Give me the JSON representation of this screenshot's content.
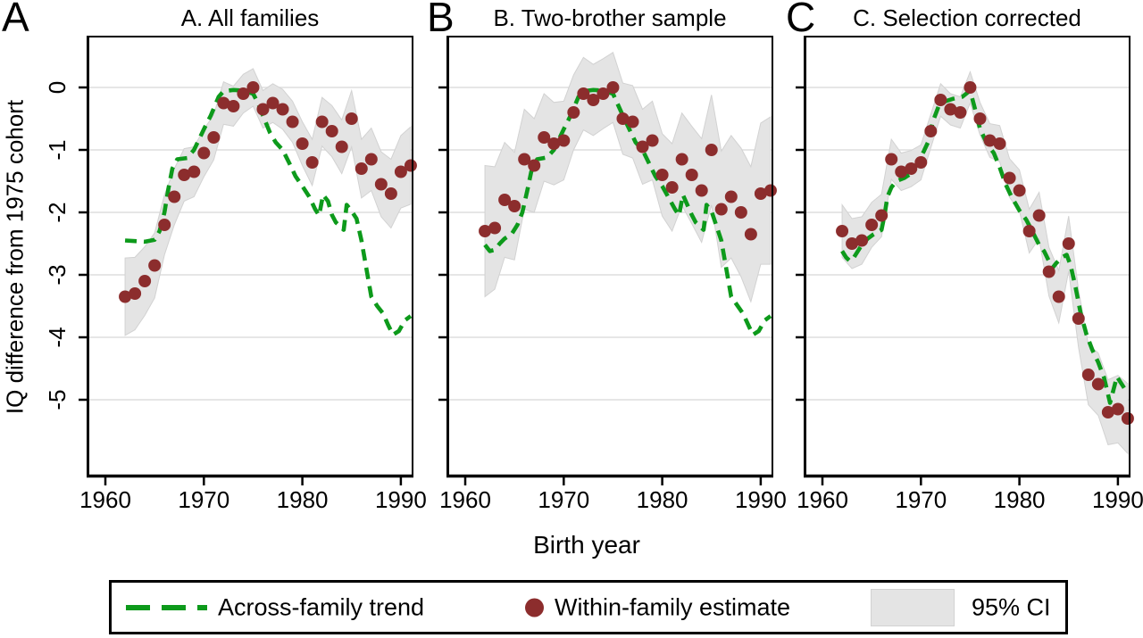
{
  "figure": {
    "y_axis_label": "IQ difference from 1975 cohort",
    "x_axis_label": "Birth year"
  },
  "legend": {
    "across_family_label": "Across-family trend",
    "within_family_label": "Within-family estimate",
    "ci_label": "95% CI"
  },
  "colors": {
    "trend_green": "#0d9a1b",
    "dot_maroon": "#8c2d2d",
    "ci_gray": "#e4e4e4",
    "ci_border": "#d2d2d2",
    "grid": "#dedede",
    "axis": "#000000"
  },
  "chart_data": [
    {
      "letter": "A",
      "title": "A. All families",
      "type": "line+scatter+band",
      "xlabel": "Birth year",
      "ylabel": "IQ difference from 1975 cohort",
      "x_ticks": [
        1960,
        1970,
        1980,
        1990
      ],
      "y_ticks": [
        0,
        -1,
        -2,
        -3,
        -4,
        -5
      ],
      "xlim": [
        1958.1,
        1991.3
      ],
      "ylim": [
        -6.24,
        0.83
      ],
      "show_y_labels": true,
      "series": {
        "within_family": {
          "years": [
            1962,
            1963,
            1964,
            1965,
            1966,
            1967,
            1968,
            1969,
            1970,
            1971,
            1972,
            1973,
            1974,
            1975,
            1976,
            1977,
            1978,
            1979,
            1980,
            1981,
            1982,
            1983,
            1984,
            1985,
            1986,
            1987,
            1988,
            1989,
            1990,
            1991
          ],
          "values": [
            -3.35,
            -3.3,
            -3.1,
            -2.85,
            -2.2,
            -1.75,
            -1.4,
            -1.35,
            -1.05,
            -0.8,
            -0.25,
            -0.3,
            -0.1,
            0,
            -0.35,
            -0.25,
            -0.35,
            -0.55,
            -0.9,
            -1.2,
            -0.55,
            -0.7,
            -0.95,
            -0.5,
            -1.3,
            -1.15,
            -1.55,
            -1.7,
            -1.35,
            -1.25
          ]
        },
        "ci_halfwidth": [
          0.62,
          0.58,
          0.55,
          0.52,
          0.48,
          0.45,
          0.42,
          0.4,
          0.38,
          0.36,
          0.34,
          0.32,
          0.31,
          0.3,
          0.3,
          0.31,
          0.32,
          0.33,
          0.35,
          0.37,
          0.39,
          0.41,
          0.43,
          0.45,
          0.47,
          0.5,
          0.52,
          0.55,
          0.58,
          0.62
        ],
        "across_family_trend": {
          "points": [
            [
              1962,
              -2.45
            ],
            [
              1963,
              -2.46
            ],
            [
              1964,
              -2.47
            ],
            [
              1965,
              -2.44
            ],
            [
              1965.5,
              -2.3
            ],
            [
              1966,
              -2.0
            ],
            [
              1966.4,
              -1.62
            ],
            [
              1966.8,
              -1.3
            ],
            [
              1967.3,
              -1.15
            ],
            [
              1968.3,
              -1.13
            ],
            [
              1969,
              -1.0
            ],
            [
              1970,
              -0.67
            ],
            [
              1970.7,
              -0.45
            ],
            [
              1971.5,
              -0.15
            ],
            [
              1972,
              -0.06
            ],
            [
              1973,
              -0.04
            ],
            [
              1974,
              -0.05
            ],
            [
              1975,
              -0.1
            ],
            [
              1975.5,
              -0.25
            ],
            [
              1976,
              -0.45
            ],
            [
              1976.7,
              -0.72
            ],
            [
              1977.3,
              -0.88
            ],
            [
              1978,
              -1.0
            ],
            [
              1978.7,
              -1.22
            ],
            [
              1979.3,
              -1.42
            ],
            [
              1980,
              -1.58
            ],
            [
              1980.7,
              -1.75
            ],
            [
              1981.3,
              -1.95
            ],
            [
              1981.7,
              -2.05
            ],
            [
              1982.1,
              -1.72
            ],
            [
              1982.6,
              -1.82
            ],
            [
              1983,
              -2.04
            ],
            [
              1983.4,
              -2.16
            ],
            [
              1984.2,
              -2.28
            ],
            [
              1984.5,
              -1.88
            ],
            [
              1985,
              -1.98
            ],
            [
              1985.5,
              -2.1
            ],
            [
              1986,
              -2.45
            ],
            [
              1986.5,
              -2.9
            ],
            [
              1987,
              -3.35
            ],
            [
              1987.6,
              -3.5
            ],
            [
              1988.2,
              -3.62
            ],
            [
              1988.7,
              -3.8
            ],
            [
              1989.2,
              -3.96
            ],
            [
              1989.8,
              -3.9
            ],
            [
              1990.4,
              -3.73
            ],
            [
              1991,
              -3.66
            ]
          ]
        }
      }
    },
    {
      "letter": "B",
      "title": "B. Two-brother sample",
      "type": "line+scatter+band",
      "xlabel": "Birth year",
      "ylabel": "IQ difference from 1975 cohort",
      "x_ticks": [
        1960,
        1970,
        1980,
        1990
      ],
      "y_ticks": [
        0,
        -1,
        -2,
        -3,
        -4,
        -5
      ],
      "xlim": [
        1958.1,
        1991.3
      ],
      "ylim": [
        -6.24,
        0.83
      ],
      "show_y_labels": false,
      "series": {
        "within_family": {
          "years": [
            1962,
            1963,
            1964,
            1965,
            1966,
            1967,
            1968,
            1969,
            1970,
            1971,
            1972,
            1973,
            1974,
            1975,
            1976,
            1977,
            1978,
            1979,
            1980,
            1981,
            1982,
            1983,
            1984,
            1985,
            1986,
            1987,
            1988,
            1989,
            1990,
            1991
          ],
          "values": [
            -2.3,
            -2.25,
            -1.8,
            -1.9,
            -1.15,
            -1.25,
            -0.8,
            -0.9,
            -0.85,
            -0.4,
            -0.1,
            -0.2,
            -0.1,
            0,
            -0.5,
            -0.55,
            -0.95,
            -0.85,
            -1.4,
            -1.6,
            -1.15,
            -1.4,
            -1.65,
            -1.0,
            -1.95,
            -1.75,
            -2.0,
            -2.35,
            -1.7,
            -1.65
          ]
        },
        "ci_halfwidth": [
          1.05,
          0.98,
          0.92,
          0.86,
          0.8,
          0.75,
          0.7,
          0.66,
          0.63,
          0.6,
          0.58,
          0.57,
          0.56,
          0.56,
          0.57,
          0.58,
          0.6,
          0.63,
          0.66,
          0.7,
          0.74,
          0.78,
          0.83,
          0.88,
          0.93,
          0.98,
          1.03,
          1.08,
          1.13,
          1.18
        ],
        "across_family_trend": {
          "points": [
            [
              1962,
              -2.52
            ],
            [
              1962.5,
              -2.62
            ],
            [
              1963,
              -2.6
            ],
            [
              1963.5,
              -2.5
            ],
            [
              1964,
              -2.42
            ],
            [
              1964.7,
              -2.35
            ],
            [
              1965.3,
              -2.2
            ],
            [
              1965.8,
              -2.0
            ],
            [
              1966.3,
              -1.65
            ],
            [
              1966.7,
              -1.35
            ],
            [
              1967.3,
              -1.15
            ],
            [
              1968.3,
              -1.12
            ],
            [
              1969,
              -1.0
            ],
            [
              1970,
              -0.67
            ],
            [
              1970.7,
              -0.45
            ],
            [
              1971.5,
              -0.15
            ],
            [
              1972,
              -0.06
            ],
            [
              1973,
              -0.04
            ],
            [
              1974,
              -0.05
            ],
            [
              1975,
              -0.1
            ],
            [
              1976,
              -0.45
            ],
            [
              1977.3,
              -0.88
            ],
            [
              1978,
              -1.0
            ],
            [
              1979.3,
              -1.42
            ],
            [
              1980,
              -1.58
            ],
            [
              1981.3,
              -1.95
            ],
            [
              1981.7,
              -2.05
            ],
            [
              1982.1,
              -1.72
            ],
            [
              1983,
              -2.04
            ],
            [
              1983.4,
              -2.16
            ],
            [
              1984.2,
              -2.28
            ],
            [
              1984.5,
              -1.88
            ],
            [
              1985,
              -1.98
            ],
            [
              1986,
              -2.45
            ],
            [
              1987,
              -3.35
            ],
            [
              1988.2,
              -3.62
            ],
            [
              1989.2,
              -3.96
            ],
            [
              1989.8,
              -3.9
            ],
            [
              1990.4,
              -3.73
            ],
            [
              1991,
              -3.66
            ]
          ]
        }
      }
    },
    {
      "letter": "C",
      "title": "C. Selection corrected",
      "type": "line+scatter+band",
      "xlabel": "Birth year",
      "ylabel": "IQ difference from 1975 cohort",
      "x_ticks": [
        1960,
        1970,
        1980,
        1990
      ],
      "y_ticks": [
        0,
        -1,
        -2,
        -3,
        -4,
        -5
      ],
      "xlim": [
        1958.1,
        1991.3
      ],
      "ylim": [
        -6.24,
        0.83
      ],
      "show_y_labels": false,
      "series": {
        "within_family": {
          "years": [
            1962,
            1963,
            1964,
            1965,
            1966,
            1967,
            1968,
            1969,
            1970,
            1971,
            1972,
            1973,
            1974,
            1975,
            1976,
            1977,
            1978,
            1979,
            1980,
            1981,
            1982,
            1983,
            1984,
            1985,
            1986,
            1987,
            1988,
            1989,
            1990,
            1991
          ],
          "values": [
            -2.3,
            -2.5,
            -2.45,
            -2.2,
            -2.05,
            -1.15,
            -1.35,
            -1.3,
            -1.2,
            -0.7,
            -0.2,
            -0.35,
            -0.4,
            0,
            -0.5,
            -0.85,
            -0.9,
            -1.45,
            -1.65,
            -2.3,
            -2.05,
            -2.95,
            -3.35,
            -2.5,
            -3.7,
            -4.6,
            -4.75,
            -5.2,
            -5.15,
            -5.3
          ]
        },
        "ci_halfwidth": [
          0.42,
          0.4,
          0.38,
          0.36,
          0.34,
          0.32,
          0.3,
          0.29,
          0.28,
          0.27,
          0.26,
          0.25,
          0.25,
          0.25,
          0.26,
          0.27,
          0.29,
          0.31,
          0.33,
          0.35,
          0.37,
          0.39,
          0.42,
          0.44,
          0.46,
          0.48,
          0.5,
          0.52,
          0.54,
          0.56
        ],
        "across_family_trend": {
          "points": [
            [
              1962,
              -2.62
            ],
            [
              1962.4,
              -2.72
            ],
            [
              1962.8,
              -2.78
            ],
            [
              1963.2,
              -2.72
            ],
            [
              1964,
              -2.52
            ],
            [
              1964.6,
              -2.42
            ],
            [
              1965.2,
              -2.35
            ],
            [
              1966,
              -2.28
            ],
            [
              1966.3,
              -2.05
            ],
            [
              1966.6,
              -1.75
            ],
            [
              1967,
              -1.6
            ],
            [
              1967.5,
              -1.5
            ],
            [
              1968.3,
              -1.45
            ],
            [
              1969,
              -1.38
            ],
            [
              1969.7,
              -1.2
            ],
            [
              1970.3,
              -1.02
            ],
            [
              1970.8,
              -0.85
            ],
            [
              1971.2,
              -0.55
            ],
            [
              1971.8,
              -0.3
            ],
            [
              1972.5,
              -0.22
            ],
            [
              1973.3,
              -0.18
            ],
            [
              1974.2,
              -0.15
            ],
            [
              1975,
              -0.05
            ],
            [
              1975.5,
              -0.35
            ],
            [
              1976,
              -0.66
            ],
            [
              1976.7,
              -0.9
            ],
            [
              1977.4,
              -1.05
            ],
            [
              1978,
              -1.28
            ],
            [
              1978.6,
              -1.55
            ],
            [
              1979.2,
              -1.75
            ],
            [
              1980,
              -1.97
            ],
            [
              1980.7,
              -2.12
            ],
            [
              1981.3,
              -2.3
            ],
            [
              1982,
              -2.52
            ],
            [
              1982.5,
              -2.62
            ],
            [
              1983,
              -2.78
            ],
            [
              1983.3,
              -2.9
            ],
            [
              1983.7,
              -2.82
            ],
            [
              1984.3,
              -2.72
            ],
            [
              1984.8,
              -2.68
            ],
            [
              1985.2,
              -2.85
            ],
            [
              1985.7,
              -3.2
            ],
            [
              1986.2,
              -3.6
            ],
            [
              1986.8,
              -3.95
            ],
            [
              1987.4,
              -4.2
            ],
            [
              1988,
              -4.4
            ],
            [
              1988.6,
              -4.65
            ],
            [
              1989.2,
              -5.05
            ],
            [
              1989.9,
              -4.63
            ],
            [
              1991,
              -4.9
            ]
          ]
        }
      }
    }
  ]
}
